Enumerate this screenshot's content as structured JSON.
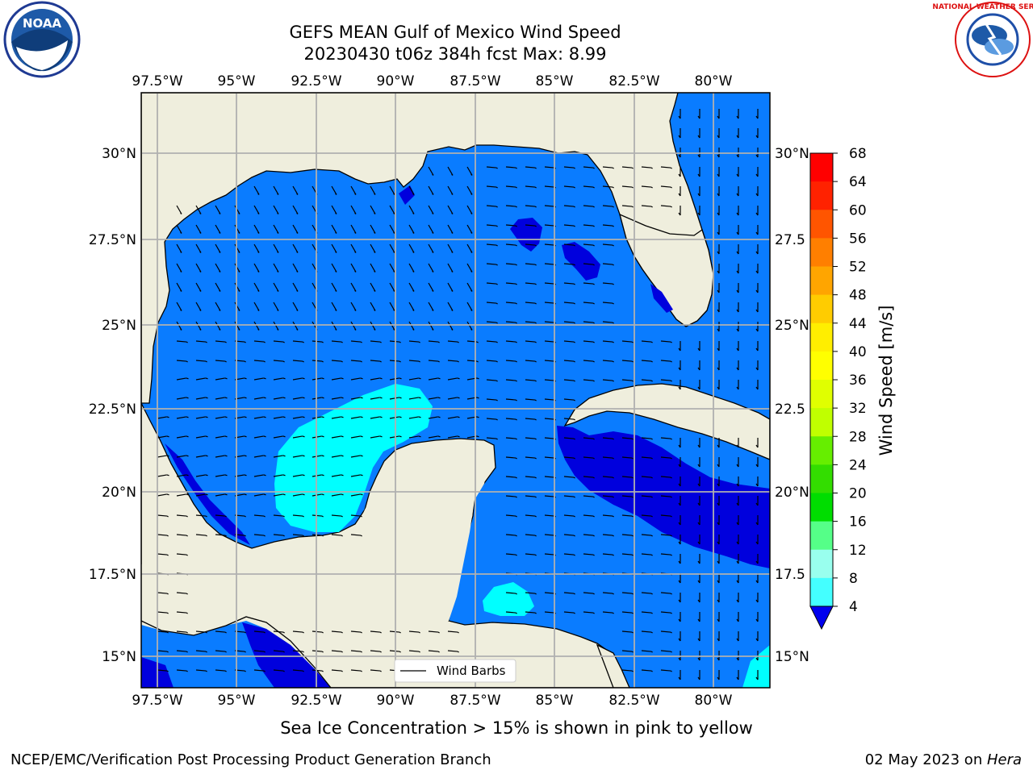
{
  "title_line1": "GEFS MEAN Gulf of Mexico Wind Speed",
  "title_line2": "20230430 t06z 384h fcst   Max: 8.99",
  "lon_labels": [
    "97.5°W",
    "95°W",
    "92.5°W",
    "90°W",
    "87.5°W",
    "85°W",
    "82.5°W",
    "80°W"
  ],
  "lat_labels": [
    "30°N",
    "27.5°N",
    "25°N",
    "22.5°N",
    "20°N",
    "17.5°N",
    "15°N"
  ],
  "lat_labels_right": [
    "30°N",
    "27.5",
    "25°N",
    "22.5",
    "20°N",
    "17.5",
    "15°N"
  ],
  "colorbar": {
    "label": "Wind Speed [m/s]",
    "ticks": [
      "68",
      "64",
      "60",
      "56",
      "52",
      "48",
      "44",
      "40",
      "36",
      "32",
      "28",
      "24",
      "20",
      "16",
      "12",
      "8",
      "4"
    ],
    "colors": [
      "#ff0000",
      "#ff2200",
      "#ff5500",
      "#ff7f00",
      "#ffa500",
      "#ffcc00",
      "#ffee00",
      "#ffff00",
      "#e0ff00",
      "#c0ff00",
      "#66ee00",
      "#33dd00",
      "#00dd00",
      "#55ff88",
      "#99ffee",
      "#44ffff",
      "#00ffff",
      "#0080ff"
    ],
    "extend_color": "#0000ee"
  },
  "legend_label": "Wind Barbs",
  "sea_ice_note": "Sea Ice Concentration > 15% is shown in pink to yellow",
  "footer_left": "NCEP/EMC/Verification Post Processing Product Generation Branch",
  "footer_right_date": "02 May 2023 on ",
  "footer_right_machine": "Hera",
  "logos": {
    "left": "NOAA",
    "right_text": "NATIONAL WEATHER SERVICE"
  },
  "map_colors": {
    "land": "#efeedd",
    "ocean_4_8": "#0a7cff",
    "ocean_lt4": "#0000dd",
    "ocean_8_12": "#00ffff"
  }
}
